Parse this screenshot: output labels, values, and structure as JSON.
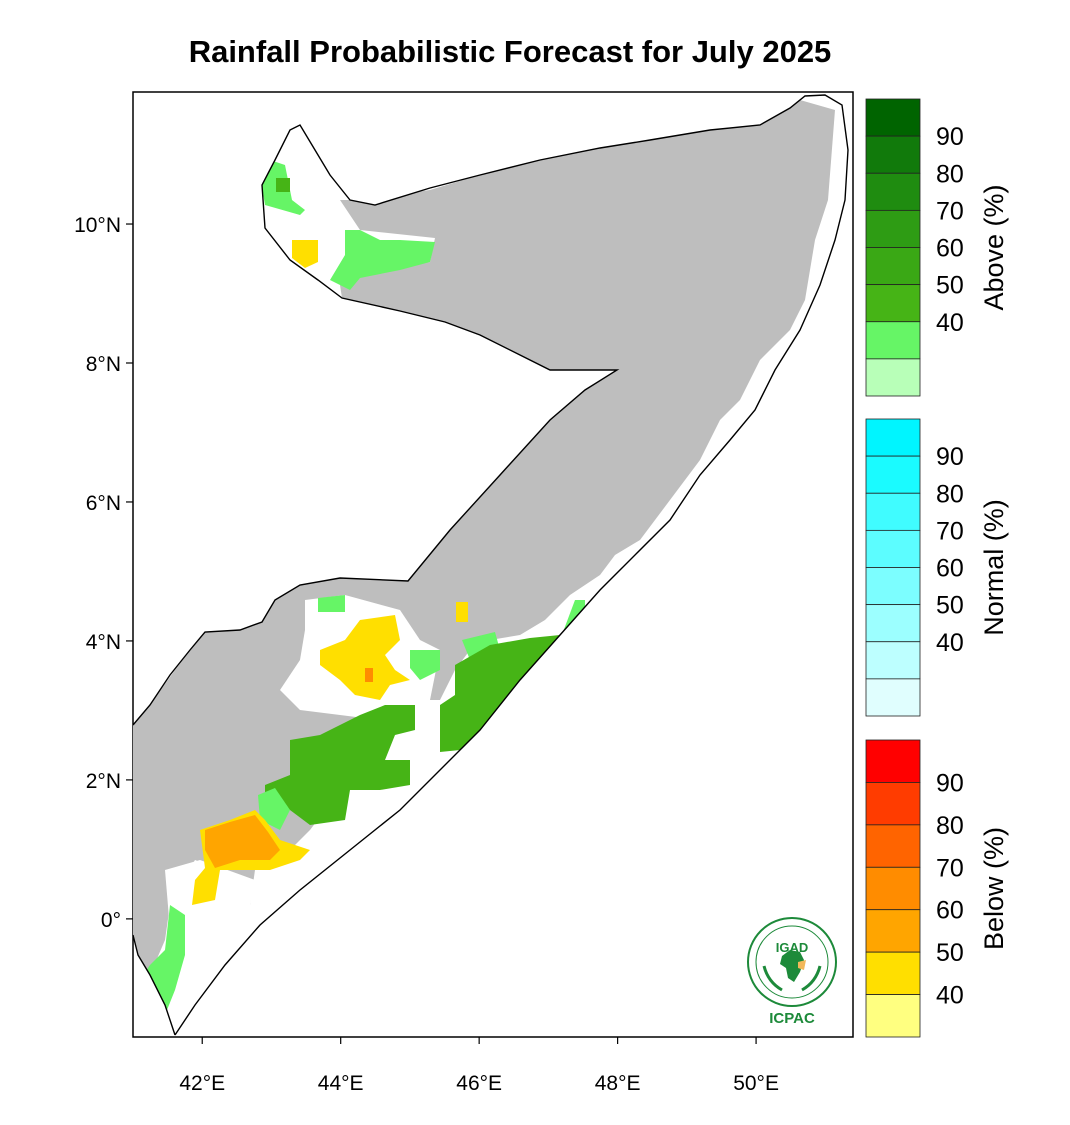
{
  "title": "Rainfall Probabilistic Forecast for July 2025",
  "map": {
    "lat_labels": [
      "10°N",
      "8°N",
      "6°N",
      "4°N",
      "2°N",
      "0°"
    ],
    "lon_labels": [
      "42°E",
      "44°E",
      "46°E",
      "48°E",
      "50°E"
    ],
    "lat_values": [
      10,
      8,
      6,
      4,
      2,
      0
    ],
    "lon_values": [
      42,
      44,
      46,
      48,
      50
    ],
    "lon_range": [
      41,
      51.4
    ],
    "lat_range": [
      -1.7,
      11.9
    ],
    "colors": {
      "dry_mask": "#bebebe",
      "above_40_50": "#66f566",
      "above_50_60": "#46b416",
      "yellow_40_50": "#ffdf00",
      "orange_50_60": "#ffa500",
      "orange_core": "#ff8c00",
      "land": "#ffffff",
      "border": "#000000"
    }
  },
  "legends": [
    {
      "id": "above",
      "label": "Above (%)",
      "ticks": [
        "90",
        "80",
        "70",
        "60",
        "50",
        "40"
      ],
      "colors": [
        "#006400",
        "#117a0b",
        "#1f8c10",
        "#2e9c14",
        "#3aa815",
        "#46b416",
        "#66f566",
        "#b8ffb8"
      ]
    },
    {
      "id": "normal",
      "label": "Normal (%)",
      "ticks": [
        "90",
        "80",
        "70",
        "60",
        "50",
        "40"
      ],
      "colors": [
        "#00f5ff",
        "#1afbff",
        "#40fcff",
        "#5cfdff",
        "#7cfeff",
        "#9cffff",
        "#bdffff",
        "#e0fefe"
      ]
    },
    {
      "id": "below",
      "label": "Below (%)",
      "ticks": [
        "90",
        "80",
        "70",
        "60",
        "50",
        "40"
      ],
      "colors": [
        "#ff0000",
        "#ff3c00",
        "#ff6400",
        "#ff8c00",
        "#ffa500",
        "#ffdf00",
        "#ffff80"
      ]
    }
  ],
  "logo": {
    "name": "IGAD",
    "caption": "ICPAC"
  }
}
